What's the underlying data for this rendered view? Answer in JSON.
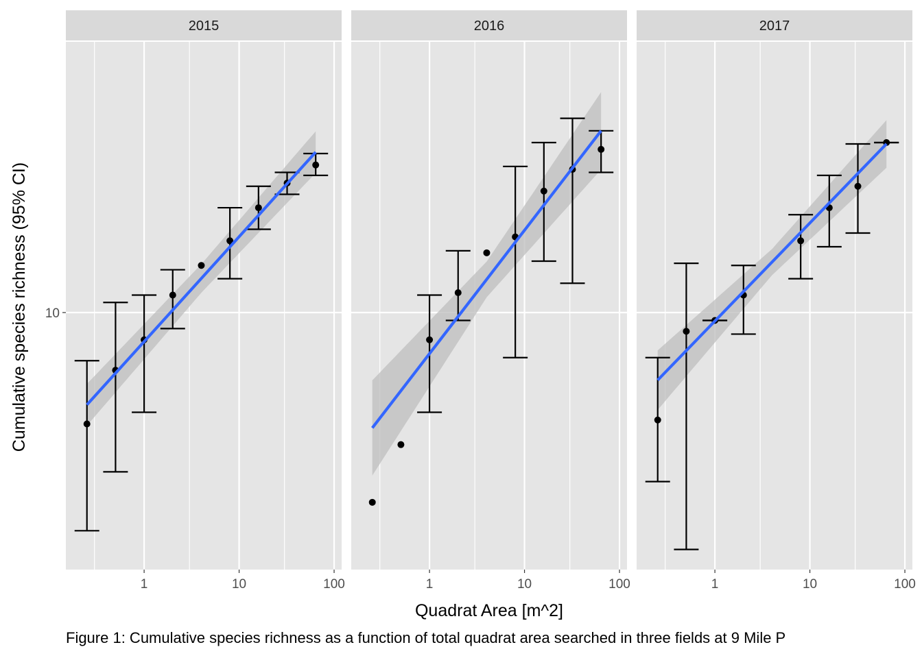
{
  "chart_data": {
    "type": "scatter",
    "description_of_layout": "",
    "facet_variable": "year",
    "facets": [
      "2015",
      "2016",
      "2017"
    ],
    "xlabel": "Quadrat Area [m^2]",
    "ylabel": "Cumulative species richness (95% CI)",
    "x_scale": "log10",
    "y_scale": "log10",
    "xlim": [
      0.15,
      120
    ],
    "ylim": [
      3.7,
      28.5
    ],
    "x_ticks": [
      1,
      10,
      100
    ],
    "x_tick_labels": [
      "1",
      "10",
      "100"
    ],
    "y_ticks": [
      10
    ],
    "y_tick_labels": [
      "10"
    ],
    "grid": true,
    "colors": {
      "panel_background": "#e5e5e5",
      "strip_background": "#d9d9d9",
      "grid": "#ffffff",
      "point": "#000000",
      "errorbar": "#000000",
      "fit_line": "#3366ff",
      "ribbon": "#bdbdbd"
    },
    "panels": [
      {
        "facet": "2015",
        "points": [
          {
            "x": 0.25,
            "y": 6.5,
            "ci": [
              4.3,
              8.3
            ]
          },
          {
            "x": 0.5,
            "y": 8.0,
            "ci": [
              5.4,
              10.4
            ]
          },
          {
            "x": 1,
            "y": 9.0,
            "ci": [
              6.8,
              10.7
            ]
          },
          {
            "x": 2,
            "y": 10.7,
            "ci": [
              9.4,
              11.8
            ]
          },
          {
            "x": 4,
            "y": 12.0,
            "ci": null
          },
          {
            "x": 8,
            "y": 13.2,
            "ci": [
              11.4,
              15.0
            ]
          },
          {
            "x": 16,
            "y": 15.0,
            "ci": [
              13.8,
              16.3
            ]
          },
          {
            "x": 32,
            "y": 16.5,
            "ci": [
              15.8,
              17.2
            ]
          },
          {
            "x": 64,
            "y": 17.7,
            "ci": [
              17.0,
              18.5
            ]
          }
        ],
        "fit": {
          "x": [
            0.25,
            64
          ],
          "y": [
            7.0,
            18.6
          ]
        },
        "band_halfwidth": [
          0.035,
          0.024,
          0.035
        ]
      },
      {
        "facet": "2016",
        "points": [
          {
            "x": 0.25,
            "y": 4.8,
            "ci": null
          },
          {
            "x": 0.5,
            "y": 6.0,
            "ci": null
          },
          {
            "x": 1,
            "y": 9.0,
            "ci": [
              6.8,
              10.7
            ]
          },
          {
            "x": 2,
            "y": 10.8,
            "ci": [
              9.7,
              12.7
            ]
          },
          {
            "x": 4,
            "y": 12.6,
            "ci": null
          },
          {
            "x": 8,
            "y": 13.4,
            "ci": [
              8.4,
              17.6
            ]
          },
          {
            "x": 16,
            "y": 16.0,
            "ci": [
              12.2,
              19.3
            ]
          },
          {
            "x": 32,
            "y": 17.4,
            "ci": [
              11.2,
              21.2
            ]
          },
          {
            "x": 64,
            "y": 18.8,
            "ci": [
              17.2,
              20.2
            ]
          }
        ],
        "fit": {
          "x": [
            0.25,
            64
          ],
          "y": [
            6.4,
            20.2
          ]
        },
        "band_halfwidth": [
          0.08,
          0.03,
          0.065
        ]
      },
      {
        "facet": "2017",
        "points": [
          {
            "x": 0.25,
            "y": 6.6,
            "ci": [
              5.2,
              8.4
            ]
          },
          {
            "x": 0.5,
            "y": 9.3,
            "ci": [
              4.0,
              12.1
            ]
          },
          {
            "x": 1,
            "y": 9.7,
            "ci": [
              9.7,
              9.7
            ]
          },
          {
            "x": 2,
            "y": 10.7,
            "ci": [
              9.2,
              12.0
            ]
          },
          {
            "x": 8,
            "y": 13.2,
            "ci": [
              11.4,
              14.6
            ]
          },
          {
            "x": 16,
            "y": 15.0,
            "ci": [
              12.9,
              17.0
            ]
          },
          {
            "x": 32,
            "y": 16.3,
            "ci": [
              13.6,
              19.2
            ]
          },
          {
            "x": 64,
            "y": 19.3,
            "ci": [
              19.3,
              19.3
            ]
          }
        ],
        "fit": {
          "x": [
            0.25,
            64
          ],
          "y": [
            7.7,
            19.2
          ]
        },
        "band_halfwidth": [
          0.05,
          0.022,
          0.04
        ]
      }
    ]
  },
  "caption": "Figure 1: Cumulative species richness as a function of total quadrat area searched in three fields at 9 Mile P"
}
